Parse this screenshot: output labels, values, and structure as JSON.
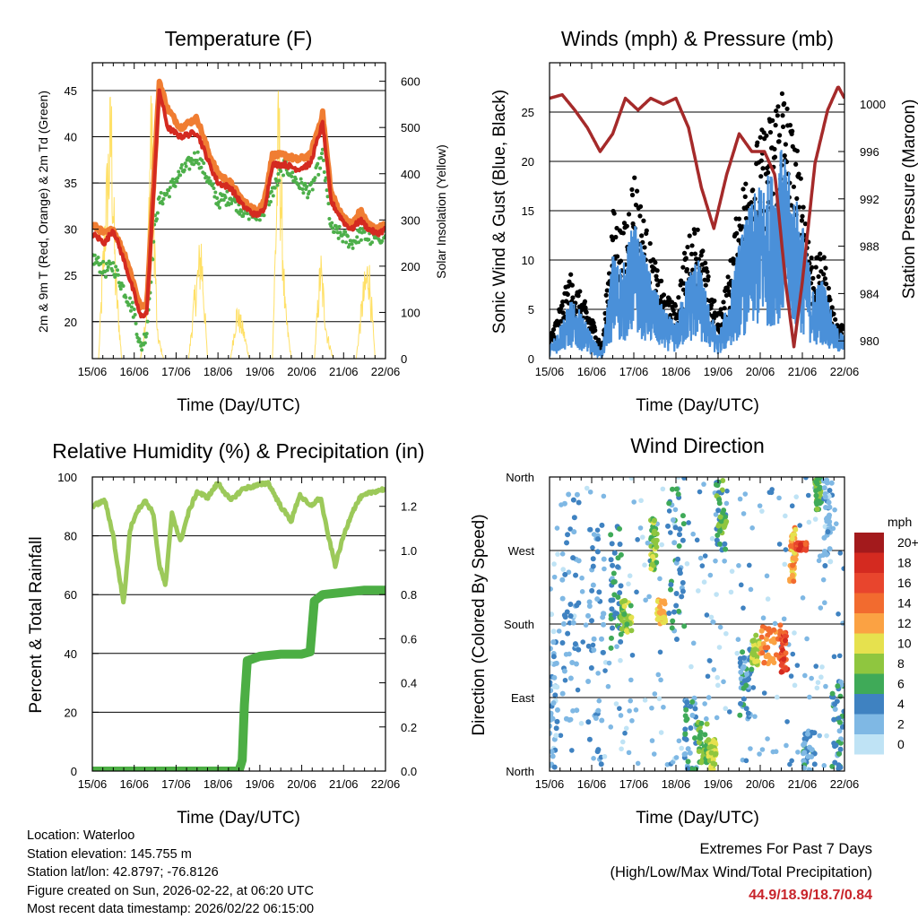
{
  "panels": {
    "temperature": {
      "title": "Temperature (F)",
      "ylabel_left": "2m & 9m T (Red, Orange) & 2m Td (Green)",
      "ylabel_right": "Solar Insolation (Yellow)",
      "xlabel": "Time (Day/UTC)"
    },
    "winds": {
      "title": "Winds (mph) & Pressure (mb)",
      "ylabel_left": "Sonic Wind & Gust (Blue, Black)",
      "ylabel_right": "Station Pressure (Maroon)",
      "xlabel": "Time (Day/UTC)"
    },
    "humidity": {
      "title": "Relative Humidity (%) & Precipitation (in)",
      "ylabel_left": "Percent & Total Rainfall",
      "xlabel": "Time (Day/UTC)"
    },
    "direction": {
      "title": "Wind Direction",
      "ylabel_left": "Direction (Colored By Speed)",
      "xlabel": "Time (Day/UTC)",
      "legend_title": "mph"
    }
  },
  "footer": {
    "location": "Location: Waterloo",
    "elevation": "Station elevation: 145.755 m",
    "latlon": "Station lat/lon: 42.8797; -76.8126",
    "created": "Figure created on Sun, 2026-02-22, at 06:20 UTC",
    "recent": "Most recent data timestamp: 2026/02/22 06:15:00",
    "extremes_title": "Extremes For Past 7 Days",
    "extremes_sub": "(High/Low/Max Wind/Total Precipitation)",
    "extremes_values": "44.9/18.9/18.7/0.84"
  },
  "chart_data": [
    {
      "type": "line",
      "title": "Temperature (F)",
      "xlabel": "Time (Day/UTC)",
      "x_ticks": [
        "15/06",
        "16/06",
        "17/06",
        "18/06",
        "19/06",
        "20/06",
        "21/06",
        "22/06"
      ],
      "xlim": [
        0,
        7
      ],
      "ylim": [
        16,
        48
      ],
      "y_ticks": [
        20,
        25,
        30,
        35,
        40,
        45
      ],
      "y2lim": [
        0,
        640
      ],
      "y2_ticks": [
        0,
        100,
        200,
        300,
        400,
        500,
        600
      ],
      "series": [
        {
          "name": "9m T (Orange)",
          "color": "#f07d32",
          "axis": "left",
          "x": [
            0,
            0.3,
            0.5,
            0.8,
            1.0,
            1.15,
            1.3,
            1.5,
            1.6,
            1.8,
            2.1,
            2.5,
            2.8,
            3.0,
            3.3,
            3.6,
            3.9,
            4.1,
            4.3,
            4.6,
            4.9,
            5.2,
            5.5,
            5.7,
            5.9,
            6.05,
            6.2,
            6.4,
            6.6,
            6.8,
            7.0
          ],
          "y": [
            30.5,
            29.5,
            30,
            27,
            24,
            21.5,
            22,
            38,
            46,
            43,
            41,
            42,
            38,
            36,
            35,
            33,
            32,
            33,
            38,
            38,
            37.5,
            38,
            42.5,
            34,
            32,
            31,
            30.5,
            32,
            30.5,
            30,
            30.5
          ]
        },
        {
          "name": "2m T (Red)",
          "color": "#d42a20",
          "axis": "left",
          "x": [
            0,
            0.3,
            0.5,
            0.8,
            1.0,
            1.15,
            1.3,
            1.5,
            1.6,
            1.8,
            2.1,
            2.5,
            2.8,
            3.0,
            3.3,
            3.6,
            3.9,
            4.1,
            4.3,
            4.6,
            4.9,
            5.2,
            5.5,
            5.7,
            5.9,
            6.05,
            6.2,
            6.4,
            6.6,
            6.8,
            7.0
          ],
          "y": [
            29.5,
            28.5,
            30,
            26,
            23,
            20.5,
            21,
            37,
            45,
            41,
            40,
            40.5,
            37,
            35,
            34.5,
            32.5,
            31.5,
            32,
            37,
            37,
            36.5,
            37,
            41.5,
            33,
            31.5,
            30.5,
            30,
            31,
            30,
            29.5,
            30
          ]
        },
        {
          "name": "2m Td (Green)",
          "color": "#4daf4a",
          "axis": "left",
          "x": [
            0,
            0.3,
            0.5,
            0.8,
            1.0,
            1.15,
            1.3,
            1.5,
            1.6,
            1.8,
            2.1,
            2.5,
            2.8,
            3.0,
            3.3,
            3.6,
            3.9,
            4.1,
            4.3,
            4.6,
            4.9,
            5.2,
            5.5,
            5.7,
            5.9,
            6.05,
            6.2,
            6.4,
            6.6,
            6.8,
            7.0
          ],
          "y": [
            27,
            25.5,
            26,
            23,
            21,
            17,
            19,
            31,
            33,
            34,
            36,
            38,
            35,
            33,
            33.5,
            32,
            31.5,
            32,
            34,
            37,
            35,
            34,
            38,
            30,
            29.5,
            29,
            28.5,
            29.5,
            29,
            29,
            29.5
          ]
        },
        {
          "name": "Solar Insolation (Yellow)",
          "color": "#ffe066",
          "axis": "right",
          "x": [
            0,
            0.15,
            0.3,
            0.45,
            0.55,
            0.7,
            0.85,
            1.0,
            1.15,
            1.3,
            1.4,
            1.55,
            1.7,
            1.85,
            2.0,
            2.3,
            2.45,
            2.6,
            2.75,
            3.0,
            3.3,
            3.45,
            3.6,
            3.75,
            4.0,
            4.3,
            4.45,
            4.6,
            4.75,
            5.0,
            5.3,
            5.45,
            5.6,
            5.75,
            6.0,
            6.3,
            6.45,
            6.6,
            6.75,
            7.0
          ],
          "y": [
            0,
            0,
            320,
            560,
            200,
            0,
            0,
            0,
            0,
            120,
            600,
            60,
            0,
            0,
            0,
            0,
            150,
            260,
            0,
            0,
            0,
            110,
            70,
            0,
            0,
            0,
            560,
            120,
            0,
            0,
            0,
            220,
            60,
            0,
            0,
            0,
            140,
            220,
            0,
            0
          ]
        }
      ]
    },
    {
      "type": "scatter",
      "title": "Winds (mph) & Pressure (mb)",
      "xlabel": "Time (Day/UTC)",
      "x_ticks": [
        "15/06",
        "16/06",
        "17/06",
        "18/06",
        "19/06",
        "20/06",
        "21/06",
        "22/06"
      ],
      "xlim": [
        0,
        7
      ],
      "ylim": [
        0,
        30
      ],
      "y_ticks": [
        0,
        5,
        10,
        15,
        20,
        25
      ],
      "y2lim": [
        978.5,
        1003.5
      ],
      "y2_ticks": [
        980,
        984,
        988,
        992,
        996,
        1000
      ],
      "series": [
        {
          "name": "Gust (Black)",
          "color": "#000000",
          "axis": "left",
          "x": [
            0,
            0.25,
            0.5,
            0.75,
            1.0,
            1.25,
            1.5,
            1.75,
            2.0,
            2.25,
            2.5,
            2.75,
            3.0,
            3.25,
            3.5,
            3.75,
            4.0,
            4.25,
            4.5,
            4.75,
            5.0,
            5.25,
            5.5,
            5.75,
            6.0,
            6.25,
            6.5,
            6.75,
            7.0
          ],
          "y": [
            2,
            5,
            8,
            6,
            4,
            1,
            14,
            12,
            18,
            13,
            9,
            6,
            5,
            11,
            13,
            8,
            4,
            8,
            15,
            19,
            21,
            23,
            27,
            22,
            17,
            9,
            10,
            4,
            3
          ]
        },
        {
          "name": "Sonic Wind (Blue)",
          "color": "#4a90d9",
          "axis": "left",
          "x": [
            0,
            0.25,
            0.5,
            0.75,
            1.0,
            1.25,
            1.5,
            1.75,
            2.0,
            2.25,
            2.5,
            2.75,
            3.0,
            3.25,
            3.5,
            3.75,
            4.0,
            4.25,
            4.5,
            4.75,
            5.0,
            5.25,
            5.5,
            5.75,
            6.0,
            6.25,
            6.5,
            6.75,
            7.0
          ],
          "y": [
            1,
            3,
            5,
            4,
            2,
            0.5,
            9,
            8,
            12,
            9,
            6,
            4,
            3,
            7,
            9,
            5,
            2,
            5,
            10,
            13,
            15,
            16,
            18,
            15,
            12,
            6,
            7,
            3,
            2
          ]
        },
        {
          "name": "Station Pressure (Maroon)",
          "color": "#a52a2a",
          "axis": "right",
          "x": [
            0,
            0.3,
            0.6,
            0.9,
            1.2,
            1.5,
            1.8,
            2.1,
            2.4,
            2.7,
            3.0,
            3.3,
            3.6,
            3.9,
            4.2,
            4.5,
            4.8,
            5.1,
            5.35,
            5.6,
            5.8,
            6.0,
            6.3,
            6.6,
            6.85,
            7.0
          ],
          "y": [
            1000.5,
            1000.8,
            999.5,
            998,
            996,
            997.5,
            1000.5,
            999.5,
            1000.5,
            1000,
            1000.5,
            998,
            993,
            989.5,
            994,
            997.5,
            996,
            996,
            994,
            985,
            979.5,
            985,
            995,
            999.5,
            1001.5,
            1000.5
          ]
        }
      ]
    },
    {
      "type": "line",
      "title": "Relative Humidity (%) & Precipitation (in)",
      "xlabel": "Time (Day/UTC)",
      "x_ticks": [
        "15/06",
        "16/06",
        "17/06",
        "18/06",
        "19/06",
        "20/06",
        "21/06",
        "22/06"
      ],
      "xlim": [
        0,
        7
      ],
      "ylim": [
        0,
        100
      ],
      "y_ticks": [
        0,
        20,
        40,
        60,
        80,
        100
      ],
      "y2lim": [
        0,
        1.333
      ],
      "y2_ticks": [
        0.0,
        0.2,
        0.4,
        0.6,
        0.8,
        1.0,
        1.2
      ],
      "series": [
        {
          "name": "Relative Humidity",
          "color": "#9cc95a",
          "axis": "left",
          "x": [
            0,
            0.3,
            0.5,
            0.6,
            0.75,
            0.9,
            1.05,
            1.25,
            1.45,
            1.6,
            1.75,
            1.9,
            2.1,
            2.3,
            2.5,
            2.75,
            3.0,
            3.3,
            3.6,
            3.9,
            4.2,
            4.5,
            4.75,
            4.95,
            5.2,
            5.45,
            5.6,
            5.8,
            6.0,
            6.2,
            6.4,
            6.7,
            7.0
          ],
          "y": [
            90,
            92,
            80,
            70,
            57,
            82,
            88,
            92,
            88,
            70,
            63,
            88,
            78,
            88,
            95,
            93,
            98,
            92,
            96,
            97,
            98,
            90,
            85,
            94,
            90,
            93,
            82,
            70,
            80,
            88,
            93,
            95,
            96
          ]
        },
        {
          "name": "Total Precipitation",
          "color": "#4cae44",
          "axis": "right",
          "x": [
            0,
            3.5,
            3.58,
            3.63,
            3.7,
            4.0,
            4.5,
            5.0,
            5.2,
            5.3,
            5.5,
            6.0,
            6.5,
            7.0
          ],
          "y": [
            0,
            0,
            0.05,
            0.3,
            0.5,
            0.52,
            0.53,
            0.53,
            0.54,
            0.77,
            0.8,
            0.81,
            0.82,
            0.82
          ]
        }
      ]
    },
    {
      "type": "scatter",
      "title": "Wind Direction",
      "xlabel": "Time (Day/UTC)",
      "ylabel": "Direction (Colored By Speed)",
      "x_ticks": [
        "15/06",
        "16/06",
        "17/06",
        "18/06",
        "19/06",
        "20/06",
        "21/06",
        "22/06"
      ],
      "xlim": [
        0,
        7
      ],
      "y_tick_labels": [
        "North",
        "East",
        "South",
        "West",
        "North"
      ],
      "ylim": [
        0,
        360
      ],
      "legend": {
        "title": "mph",
        "labels": [
          "20+",
          "18",
          "16",
          "14",
          "12",
          "10",
          "8",
          "6",
          "4",
          "2",
          "0"
        ],
        "colors": [
          "#a31a1c",
          "#d42a20",
          "#e8452d",
          "#f26b2f",
          "#fba243",
          "#e6e14e",
          "#8fc63f",
          "#3faa58",
          "#3f82c1",
          "#7fb8e4",
          "#bfe3f5"
        ]
      },
      "clusters": [
        {
          "x": [
            0.0,
            0.2
          ],
          "y": [
            0,
            200
          ],
          "speed": 2
        },
        {
          "x": [
            0.3,
            0.7
          ],
          "y": [
            50,
            360
          ],
          "speed": 3
        },
        {
          "x": [
            0.9,
            1.3
          ],
          "y": [
            0,
            320
          ],
          "speed": 3
        },
        {
          "x": [
            1.45,
            1.7
          ],
          "y": [
            150,
            300
          ],
          "speed": 5
        },
        {
          "x": [
            1.7,
            1.95
          ],
          "y": [
            170,
            210
          ],
          "speed": 8
        },
        {
          "x": [
            2.4,
            2.55
          ],
          "y": [
            240,
            310
          ],
          "speed": 8
        },
        {
          "x": [
            2.55,
            2.75
          ],
          "y": [
            180,
            210
          ],
          "speed": 11
        },
        {
          "x": [
            2.8,
            3.2
          ],
          "y": [
            150,
            350
          ],
          "speed": 4
        },
        {
          "x": [
            3.2,
            3.5
          ],
          "y": [
            0,
            90
          ],
          "speed": 4
        },
        {
          "x": [
            3.5,
            3.75
          ],
          "y": [
            10,
            60
          ],
          "speed": 7
        },
        {
          "x": [
            3.75,
            3.95
          ],
          "y": [
            0,
            40
          ],
          "speed": 9
        },
        {
          "x": [
            3.95,
            4.2
          ],
          "y": [
            270,
            360
          ],
          "speed": 6
        },
        {
          "x": [
            4.5,
            4.8
          ],
          "y": [
            60,
            150
          ],
          "speed": 4
        },
        {
          "x": [
            4.8,
            5.0
          ],
          "y": [
            130,
            170
          ],
          "speed": 9
        },
        {
          "x": [
            5.0,
            5.5
          ],
          "y": [
            130,
            180
          ],
          "speed": 13
        },
        {
          "x": [
            5.5,
            5.65
          ],
          "y": [
            120,
            170
          ],
          "speed": 16
        },
        {
          "x": [
            5.7,
            5.85
          ],
          "y": [
            230,
            300
          ],
          "speed": 12
        },
        {
          "x": [
            5.85,
            6.1
          ],
          "y": [
            270,
            280
          ],
          "speed": 16
        },
        {
          "x": [
            6.0,
            6.3
          ],
          "y": [
            0,
            50
          ],
          "speed": 4
        },
        {
          "x": [
            6.3,
            6.45
          ],
          "y": [
            320,
            360
          ],
          "speed": 7
        },
        {
          "x": [
            6.5,
            6.7
          ],
          "y": [
            250,
            360
          ],
          "speed": 2
        },
        {
          "x": [
            6.7,
            7.0
          ],
          "y": [
            0,
            110
          ],
          "speed": 4
        }
      ]
    }
  ]
}
